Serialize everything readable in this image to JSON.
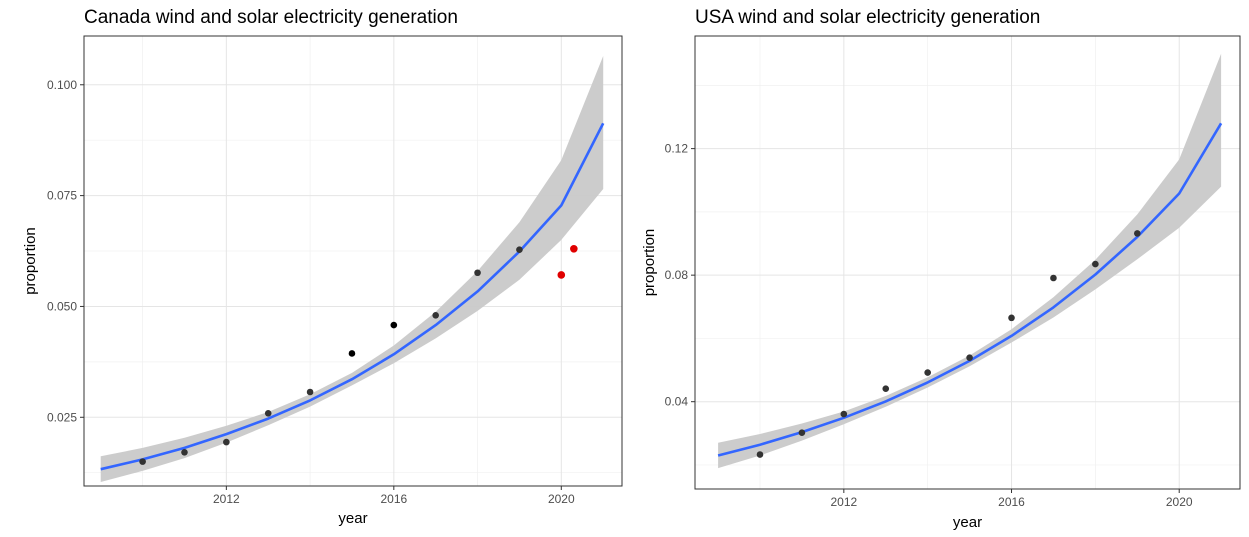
{
  "chart_data": [
    {
      "type": "scatter",
      "title": "Canada wind and solar electricity generation",
      "xlabel": "year",
      "ylabel": "proportion",
      "xlim": [
        2008.6,
        2021.45
      ],
      "ylim": [
        0.0095,
        0.111
      ],
      "xticks": [
        2012,
        2016,
        2020
      ],
      "xtick_labels": [
        "2012",
        "2016",
        "2020"
      ],
      "yticks": [
        0.025,
        0.05,
        0.075,
        0.1
      ],
      "ytick_labels": [
        "0.025",
        "0.050",
        "0.075",
        "0.100"
      ],
      "grid": true,
      "points": [
        {
          "x": 2010,
          "y": 0.015,
          "color": "#333333"
        },
        {
          "x": 2011,
          "y": 0.0171,
          "color": "#333333"
        },
        {
          "x": 2012,
          "y": 0.0194,
          "color": "#333333"
        },
        {
          "x": 2013,
          "y": 0.0259,
          "color": "#333333"
        },
        {
          "x": 2014,
          "y": 0.0307,
          "color": "#333333"
        },
        {
          "x": 2015,
          "y": 0.0394,
          "color": "#000000"
        },
        {
          "x": 2016,
          "y": 0.0458,
          "color": "#000000"
        },
        {
          "x": 2017,
          "y": 0.048,
          "color": "#333333"
        },
        {
          "x": 2018,
          "y": 0.0576,
          "color": "#333333"
        },
        {
          "x": 2019,
          "y": 0.0628,
          "color": "#333333"
        },
        {
          "x": 2020.0,
          "y": 0.0571,
          "color": "#e00000"
        },
        {
          "x": 2020.3,
          "y": 0.063,
          "color": "#e00000"
        }
      ],
      "fit": {
        "x": [
          2009,
          2010,
          2011,
          2012,
          2013,
          2014,
          2015,
          2016,
          2017,
          2018,
          2019,
          2020,
          2021
        ],
        "y": [
          0.0133,
          0.0155,
          0.0181,
          0.0212,
          0.0247,
          0.0288,
          0.0336,
          0.0392,
          0.0458,
          0.0534,
          0.0624,
          0.0728,
          0.0913
        ],
        "lower": [
          0.0104,
          0.0129,
          0.0158,
          0.0193,
          0.0232,
          0.0274,
          0.0322,
          0.0372,
          0.0428,
          0.049,
          0.056,
          0.065,
          0.0765
        ],
        "upper": [
          0.0162,
          0.0181,
          0.0204,
          0.0231,
          0.0262,
          0.0302,
          0.035,
          0.0412,
          0.0488,
          0.058,
          0.069,
          0.083,
          0.1065
        ],
        "color": "#3366ff",
        "band_color": "#c9c9c9"
      }
    },
    {
      "type": "scatter",
      "title": "USA wind and solar electricity generation",
      "xlabel": "year",
      "ylabel": "proportion",
      "xlim": [
        2008.45,
        2021.45
      ],
      "ylim": [
        0.0124,
        0.1556
      ],
      "xticks": [
        2012,
        2016,
        2020
      ],
      "xtick_labels": [
        "2012",
        "2016",
        "2020"
      ],
      "yticks": [
        0.04,
        0.08,
        0.12
      ],
      "ytick_labels": [
        "0.04",
        "0.08",
        "0.12"
      ],
      "grid": true,
      "points": [
        {
          "x": 2010,
          "y": 0.0233,
          "color": "#333333"
        },
        {
          "x": 2011,
          "y": 0.0302,
          "color": "#333333"
        },
        {
          "x": 2012,
          "y": 0.0361,
          "color": "#333333"
        },
        {
          "x": 2013,
          "y": 0.0441,
          "color": "#333333"
        },
        {
          "x": 2014,
          "y": 0.0492,
          "color": "#333333"
        },
        {
          "x": 2015,
          "y": 0.0539,
          "color": "#333333"
        },
        {
          "x": 2016,
          "y": 0.0665,
          "color": "#333333"
        },
        {
          "x": 2017,
          "y": 0.0791,
          "color": "#333333"
        },
        {
          "x": 2018,
          "y": 0.0835,
          "color": "#333333"
        },
        {
          "x": 2019,
          "y": 0.0932,
          "color": "#333333"
        }
      ],
      "fit": {
        "x": [
          2009,
          2010,
          2011,
          2012,
          2013,
          2014,
          2015,
          2016,
          2017,
          2018,
          2019,
          2020,
          2021
        ],
        "y": [
          0.023,
          0.0264,
          0.0304,
          0.0349,
          0.0401,
          0.0461,
          0.0529,
          0.0608,
          0.0698,
          0.0802,
          0.0921,
          0.1058,
          0.128
        ],
        "lower": [
          0.019,
          0.023,
          0.0277,
          0.0329,
          0.0384,
          0.0445,
          0.0512,
          0.0587,
          0.0666,
          0.0755,
          0.085,
          0.095,
          0.108
        ],
        "upper": [
          0.027,
          0.0298,
          0.0331,
          0.0369,
          0.0418,
          0.0477,
          0.0546,
          0.0629,
          0.073,
          0.0849,
          0.0992,
          0.1166,
          0.15
        ],
        "color": "#3366ff",
        "band_color": "#c9c9c9"
      }
    }
  ]
}
